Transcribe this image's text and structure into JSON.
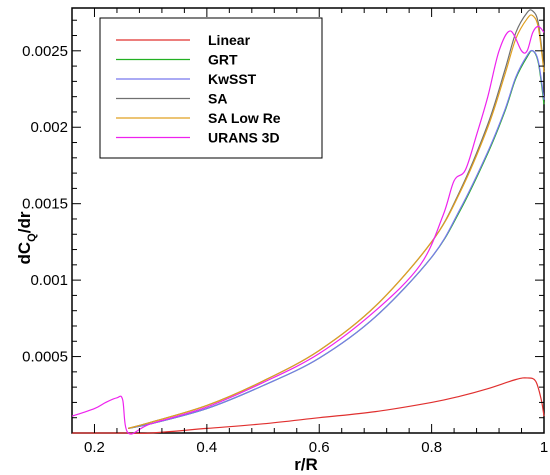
{
  "chart_data": {
    "type": "line",
    "xlabel": "r/R",
    "ylabel_main": "dC",
    "ylabel_sub": "Q",
    "ylabel_tail": "/dr",
    "xlim": [
      0.16,
      1.0
    ],
    "ylim": [
      0,
      0.00278
    ],
    "x_ticks": [
      0.2,
      0.4,
      0.6,
      0.8,
      1.0
    ],
    "x_tick_labels": [
      "0.2",
      "0.4",
      "0.6",
      "0.8",
      "1"
    ],
    "y_ticks": [
      0.0005,
      0.001,
      0.0015,
      0.002,
      0.0025
    ],
    "y_tick_labels": [
      "0.0005",
      "0.001",
      "0.0015",
      "0.002",
      "0.0025"
    ],
    "grid": false,
    "legend_position": "top-left",
    "series": [
      {
        "name": "Linear",
        "color": "#e0302f",
        "points": [
          [
            0.16,
            0.0
          ],
          [
            0.2,
            0.0
          ],
          [
            0.25,
            0.0
          ],
          [
            0.3,
            0.0
          ],
          [
            0.4,
            3e-05
          ],
          [
            0.5,
            6e-05
          ],
          [
            0.6,
            0.0001
          ],
          [
            0.7,
            0.00014
          ],
          [
            0.8,
            0.0002
          ],
          [
            0.85,
            0.00024
          ],
          [
            0.9,
            0.00029
          ],
          [
            0.95,
            0.00035
          ],
          [
            0.97,
            0.00036
          ],
          [
            0.985,
            0.00034
          ],
          [
            0.995,
            0.00022
          ],
          [
            1.0,
            0.00011
          ]
        ]
      },
      {
        "name": "GRT",
        "color": "#22b022",
        "points": [
          [
            0.26,
            3e-05
          ],
          [
            0.3,
            6e-05
          ],
          [
            0.4,
            0.00016
          ],
          [
            0.5,
            0.00031
          ],
          [
            0.6,
            0.00049
          ],
          [
            0.7,
            0.00076
          ],
          [
            0.8,
            0.00115
          ],
          [
            0.85,
            0.00145
          ],
          [
            0.9,
            0.00183
          ],
          [
            0.93,
            0.0021
          ],
          [
            0.95,
            0.00232
          ],
          [
            0.97,
            0.00246
          ],
          [
            0.98,
            0.0025
          ],
          [
            0.99,
            0.00242
          ],
          [
            1.0,
            0.00215
          ]
        ]
      },
      {
        "name": "KwSST",
        "color": "#7878ee",
        "points": [
          [
            0.26,
            3e-05
          ],
          [
            0.3,
            6e-05
          ],
          [
            0.4,
            0.00016
          ],
          [
            0.5,
            0.00031
          ],
          [
            0.6,
            0.00049
          ],
          [
            0.7,
            0.00076
          ],
          [
            0.8,
            0.00115
          ],
          [
            0.85,
            0.00146
          ],
          [
            0.9,
            0.00184
          ],
          [
            0.93,
            0.00211
          ],
          [
            0.95,
            0.00233
          ],
          [
            0.97,
            0.00247
          ],
          [
            0.98,
            0.0025
          ],
          [
            0.99,
            0.00243
          ],
          [
            1.0,
            0.00218
          ]
        ]
      },
      {
        "name": "SA",
        "color": "#707070",
        "points": [
          [
            0.26,
            3e-05
          ],
          [
            0.3,
            7e-05
          ],
          [
            0.4,
            0.00018
          ],
          [
            0.5,
            0.00034
          ],
          [
            0.6,
            0.00054
          ],
          [
            0.7,
            0.00083
          ],
          [
            0.8,
            0.00125
          ],
          [
            0.85,
            0.00158
          ],
          [
            0.9,
            0.00202
          ],
          [
            0.93,
            0.00237
          ],
          [
            0.95,
            0.00262
          ],
          [
            0.97,
            0.00275
          ],
          [
            0.98,
            0.00276
          ],
          [
            0.99,
            0.00268
          ],
          [
            1.0,
            0.00238
          ]
        ]
      },
      {
        "name": "SA Low Re",
        "color": "#e0a020",
        "points": [
          [
            0.26,
            3e-05
          ],
          [
            0.3,
            7e-05
          ],
          [
            0.4,
            0.00018
          ],
          [
            0.5,
            0.00034
          ],
          [
            0.6,
            0.00054
          ],
          [
            0.7,
            0.00083
          ],
          [
            0.8,
            0.00125
          ],
          [
            0.85,
            0.00157
          ],
          [
            0.9,
            0.002
          ],
          [
            0.93,
            0.00234
          ],
          [
            0.95,
            0.00258
          ],
          [
            0.97,
            0.00271
          ],
          [
            0.98,
            0.00273
          ],
          [
            0.99,
            0.00265
          ],
          [
            1.0,
            0.00236
          ]
        ]
      },
      {
        "name": "URANS 3D",
        "color": "#ee22ee",
        "points": [
          [
            0.16,
            0.00011
          ],
          [
            0.2,
            0.00016
          ],
          [
            0.22,
            0.0002
          ],
          [
            0.24,
            0.00023
          ],
          [
            0.25,
            0.00022
          ],
          [
            0.26,
            0.0
          ],
          [
            0.3,
            6e-05
          ],
          [
            0.4,
            0.00017
          ],
          [
            0.5,
            0.00033
          ],
          [
            0.6,
            0.00052
          ],
          [
            0.7,
            0.0008
          ],
          [
            0.78,
            0.0011
          ],
          [
            0.82,
            0.00142
          ],
          [
            0.84,
            0.00165
          ],
          [
            0.86,
            0.00172
          ],
          [
            0.88,
            0.00195
          ],
          [
            0.9,
            0.0022
          ],
          [
            0.92,
            0.0025
          ],
          [
            0.94,
            0.00263
          ],
          [
            0.96,
            0.0025
          ],
          [
            0.97,
            0.0025
          ],
          [
            0.98,
            0.00262
          ],
          [
            0.99,
            0.00266
          ],
          [
            1.0,
            0.00262
          ]
        ]
      }
    ]
  }
}
